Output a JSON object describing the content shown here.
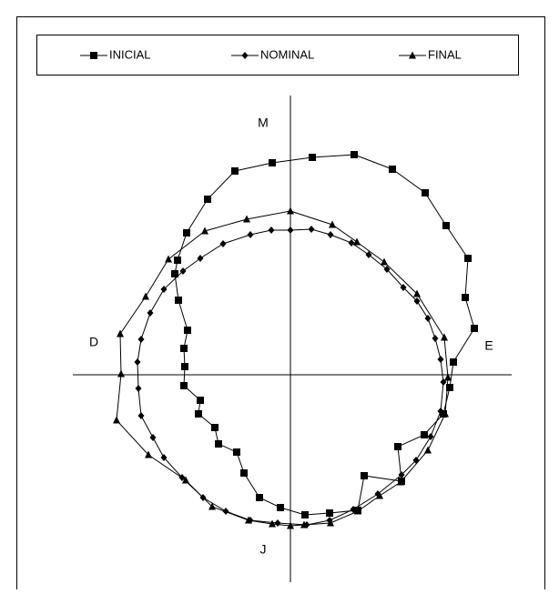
{
  "chart_data": {
    "type": "scatter",
    "closed": true,
    "axis_labels": {
      "top": "M",
      "right": "E",
      "left": "D",
      "bottom": "J"
    },
    "xlim": [
      -239,
      243
    ],
    "ylim": [
      -228,
      307
    ],
    "series": [
      {
        "name": "INICIAL",
        "color": "#000000",
        "marker": "square",
        "x": [
          70,
          112,
          148,
          171,
          195,
          192,
          202,
          179,
          175,
          168,
          147,
          118,
          122,
          81,
          74,
          43,
          16,
          -11,
          -34,
          -51,
          -59,
          -79,
          -83,
          -101,
          -99,
          -117,
          -116,
          -117,
          -113,
          -123,
          -127,
          -124,
          -114,
          -91,
          -61,
          -20,
          24
        ],
        "values": [
          242,
          226,
          200,
          164,
          128,
          85,
          51,
          14,
          -14,
          -43,
          -66,
          -79,
          -117,
          -111,
          -149,
          -152,
          -154,
          -146,
          -135,
          -108,
          -85,
          -76,
          -58,
          -43,
          -28,
          -12,
          9,
          29,
          49,
          82,
          111,
          126,
          156,
          193,
          224,
          233,
          239
        ]
      },
      {
        "name": "NOMINAL",
        "color": "#000000",
        "marker": "diamond",
        "x": [
          0,
          23,
          44,
          67,
          86,
          106,
          124,
          139,
          151,
          159,
          165,
          168,
          165,
          154,
          138,
          122,
          96,
          69,
          43,
          18,
          -14,
          -44,
          -71,
          -96,
          -119,
          -139,
          -151,
          -164,
          -167,
          -168,
          -164,
          -154,
          -139,
          -118,
          -99,
          -74,
          -44,
          -21
        ],
        "values": [
          159,
          160,
          154,
          145,
          132,
          116,
          96,
          81,
          62,
          40,
          17,
          -8,
          -40,
          -68,
          -94,
          -110,
          -131,
          -148,
          -160,
          -165,
          -163,
          -160,
          -150,
          -135,
          -113,
          -91,
          -69,
          -45,
          -15,
          14,
          39,
          68,
          94,
          114,
          128,
          144,
          154,
          159
        ]
      },
      {
        "name": "FINAL",
        "color": "#000000",
        "marker": "triangle",
        "x": [
          0,
          46,
          73,
          103,
          139,
          169,
          173,
          170,
          151,
          121,
          98,
          74,
          44,
          15,
          0,
          -20,
          -46,
          -86,
          -115,
          -156,
          -191,
          -186,
          -187,
          -159,
          -134,
          -94,
          -48
        ],
        "values": [
          180,
          165,
          146,
          124,
          89,
          41,
          -3,
          -43,
          -83,
          -118,
          -133,
          -150,
          -163,
          -165,
          -166,
          -164,
          -160,
          -145,
          -116,
          -88,
          -50,
          1,
          45,
          86,
          127,
          158,
          171
        ]
      }
    ]
  }
}
